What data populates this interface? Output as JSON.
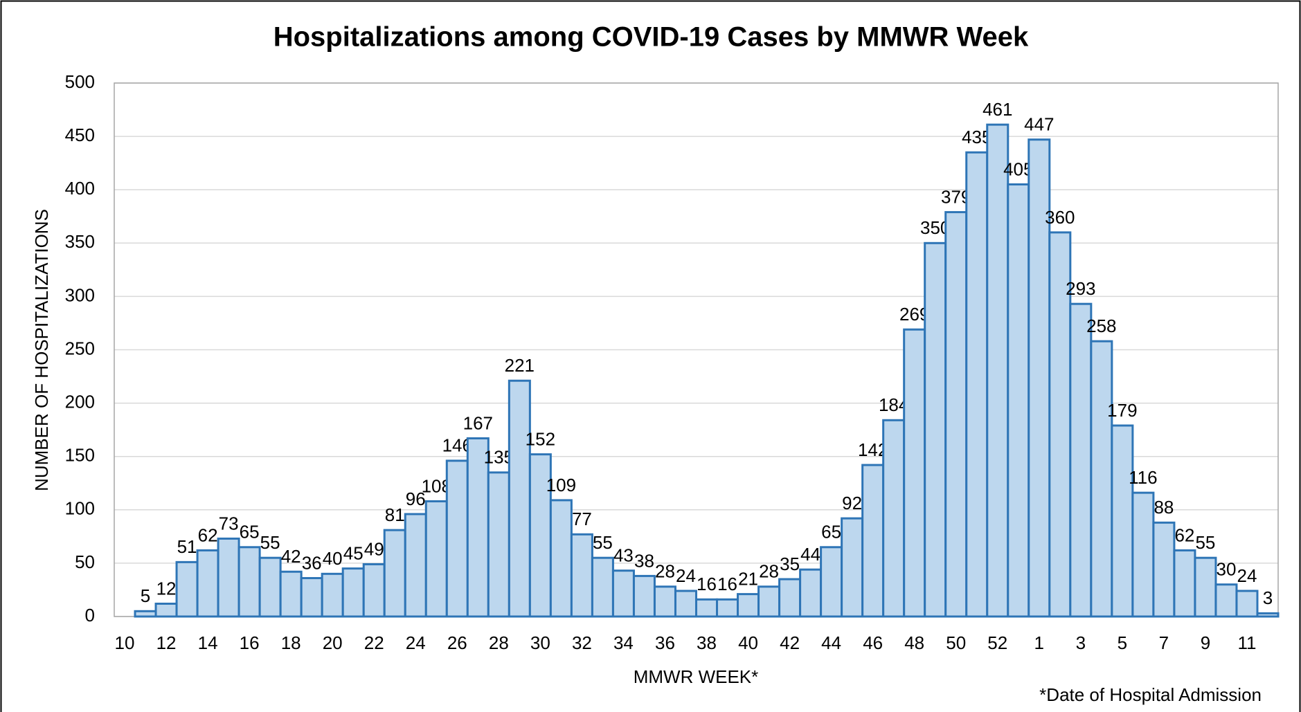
{
  "chart_data": {
    "type": "bar",
    "title": "Hospitalizations among COVID-19 Cases by MMWR Week",
    "x_label": "MMWR WEEK*",
    "y_label": "NUMBER OF HOSPITALIZATIONS",
    "footnote": "*Date of Hospital Admission",
    "categories": [
      "10",
      null,
      "12",
      null,
      "14",
      null,
      "16",
      null,
      "18",
      null,
      "20",
      null,
      "22",
      null,
      "24",
      null,
      "26",
      null,
      "28",
      null,
      "30",
      null,
      "32",
      null,
      "34",
      null,
      "36",
      null,
      "38",
      null,
      "40",
      null,
      "42",
      null,
      "44",
      null,
      "46",
      null,
      "48",
      null,
      "50",
      null,
      "52",
      null,
      "1",
      null,
      "3",
      null,
      "5",
      null,
      "7",
      null,
      "9",
      null,
      "11",
      null
    ],
    "values": [
      null,
      5,
      12,
      51,
      62,
      73,
      65,
      55,
      42,
      36,
      40,
      45,
      49,
      81,
      96,
      108,
      146,
      167,
      135,
      221,
      152,
      109,
      77,
      55,
      43,
      38,
      28,
      24,
      16,
      16,
      21,
      28,
      35,
      44,
      65,
      92,
      142,
      184,
      269,
      350,
      379,
      435,
      461,
      405,
      447,
      360,
      293,
      258,
      179,
      116,
      88,
      62,
      55,
      30,
      24,
      3
    ],
    "color": "#bdd7ee",
    "edge_color": "#2e75b6",
    "ylim": [
      0,
      500
    ],
    "yticks": [
      0,
      50,
      100,
      150,
      200,
      250,
      300,
      350,
      400,
      450,
      500
    ],
    "grid": true
  }
}
